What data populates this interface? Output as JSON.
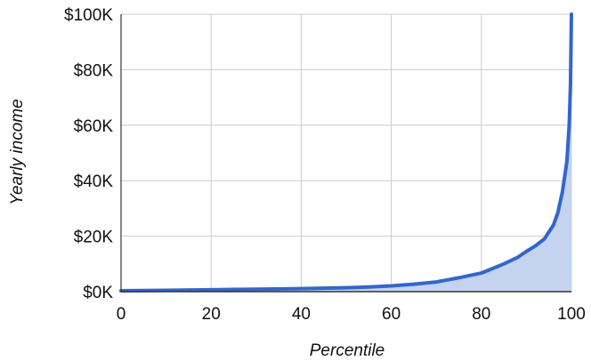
{
  "chart_data": {
    "type": "area",
    "xlabel": "Percentile",
    "ylabel": "Yearly income",
    "xlim": [
      0,
      100
    ],
    "ylim": [
      0,
      100000
    ],
    "x_ticks": [
      0,
      20,
      40,
      60,
      80,
      100
    ],
    "x_tick_labels": [
      "0",
      "20",
      "40",
      "60",
      "80",
      "100"
    ],
    "y_ticks": [
      0,
      20000,
      40000,
      60000,
      80000,
      100000
    ],
    "y_tick_labels": [
      "$0K",
      "$20K",
      "$40K",
      "$60K",
      "$80K",
      "$100K"
    ],
    "grid": true,
    "legend": "none",
    "series": [
      {
        "x": [
          0,
          10,
          20,
          30,
          40,
          50,
          55,
          60,
          65,
          70,
          75,
          80,
          82,
          85,
          88,
          90,
          92,
          94,
          96,
          97,
          98,
          99,
          99.5,
          99.8,
          100
        ],
        "y": [
          300,
          500,
          700,
          900,
          1100,
          1400,
          1700,
          2100,
          2700,
          3500,
          5000,
          6700,
          8000,
          10000,
          12300,
          14500,
          16500,
          19000,
          24000,
          28500,
          36000,
          47000,
          60000,
          75000,
          100000
        ],
        "line_color": "#3366cc",
        "fill_color": "#c3d3f0"
      }
    ],
    "colors": {
      "grid": "#cccccc",
      "axis": "#333333",
      "baseline": "#333333"
    }
  }
}
